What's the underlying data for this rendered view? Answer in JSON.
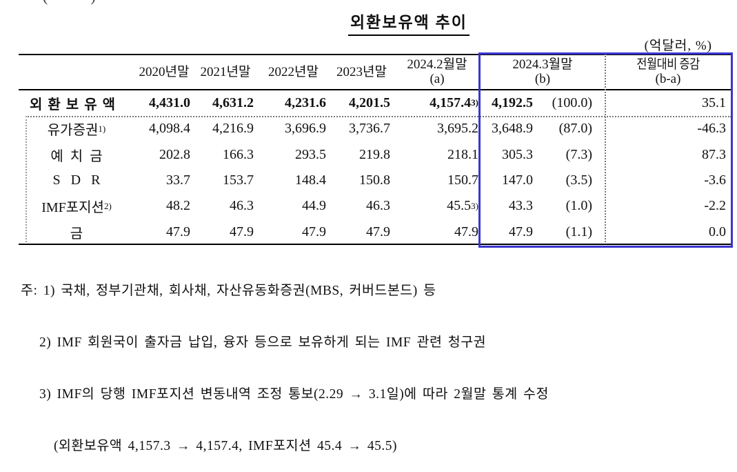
{
  "page": {
    "clipped_top_fragment": "(        )",
    "title": "외환보유액 추이",
    "unit_note": "(억달러, %)"
  },
  "accent_color": "#3b35cf",
  "table": {
    "col_headers": [
      {
        "line1": "",
        "line2": ""
      },
      {
        "line1": "2020년말",
        "line2": ""
      },
      {
        "line1": "2021년말",
        "line2": ""
      },
      {
        "line1": "2022년말",
        "line2": ""
      },
      {
        "line1": "2023년말",
        "line2": ""
      },
      {
        "line1": "2024.2월말",
        "line2": "(a)"
      },
      {
        "line1": "2024.3월말",
        "line2": "(b)"
      },
      {
        "line1": "전월대비 증감",
        "line2": "(b-a)"
      }
    ],
    "rows": [
      {
        "label": "외환보유액",
        "label_sup": "",
        "values": [
          "4,431.0",
          "4,631.2",
          "4,231.6",
          "4,201.5"
        ],
        "v5": "4,157.4",
        "v5_sup": "3)",
        "b_val": "4,192.5",
        "b_pct": "(100.0)",
        "diff": "35.1"
      },
      {
        "label": "유가증권",
        "label_sup": "1)",
        "values": [
          "4,098.4",
          "4,216.9",
          "3,696.9",
          "3,736.7"
        ],
        "v5": "3,695.2",
        "v5_sup": "",
        "b_val": "3,648.9",
        "b_pct": "(87.0)",
        "diff": "-46.3"
      },
      {
        "label": "예  치  금",
        "label_sup": "",
        "values": [
          "202.8",
          "166.3",
          "293.5",
          "219.8"
        ],
        "v5": "218.1",
        "v5_sup": "",
        "b_val": "305.3",
        "b_pct": "(7.3)",
        "diff": "87.3"
      },
      {
        "label": "S   D   R",
        "label_sup": "",
        "values": [
          "33.7",
          "153.7",
          "148.4",
          "150.8"
        ],
        "v5": "150.7",
        "v5_sup": "",
        "b_val": "147.0",
        "b_pct": "(3.5)",
        "diff": "-3.6"
      },
      {
        "label": "IMF포지션",
        "label_sup": "2)",
        "values": [
          "48.2",
          "46.3",
          "44.9",
          "46.3"
        ],
        "v5": "45.5",
        "v5_sup": "3)",
        "b_val": "43.3",
        "b_pct": "(1.0)",
        "diff": "-2.2"
      },
      {
        "label": "금",
        "label_sup": "",
        "values": [
          "47.9",
          "47.9",
          "47.9",
          "47.9"
        ],
        "v5": "47.9",
        "v5_sup": "",
        "b_val": "47.9",
        "b_pct": "(1.1)",
        "diff": "0.0"
      }
    ]
  },
  "footnotes": [
    "주: 1) 국채, 정부기관채, 회사채, 자산유동화증권(MBS, 커버드본드) 등",
    "2) IMF 회원국이 출자금 납입, 융자 등으로 보유하게 되는 IMF 관련 청구권",
    "3) IMF의 당행 IMF포지션 변동내역 조정 통보(2.29 → 3.1일)에 따라 2월말 통계 수정",
    "(외환보유액 4,157.3 → 4,157.4, IMF포지션 45.4 → 45.5)"
  ]
}
